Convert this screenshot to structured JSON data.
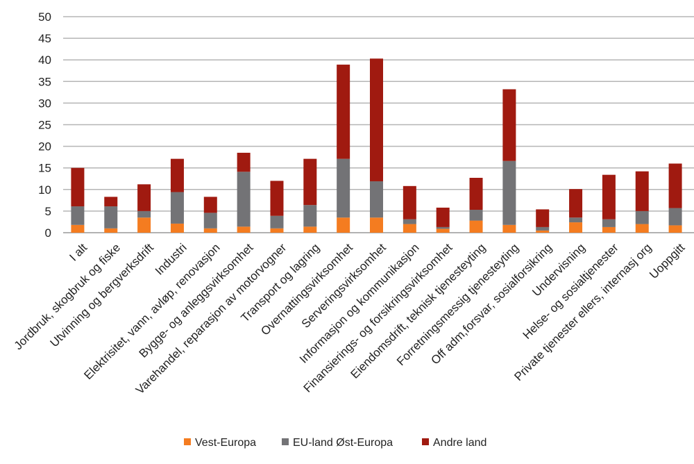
{
  "chart_data": {
    "type": "bar",
    "stacked": true,
    "title": "",
    "xlabel": "",
    "ylabel": "",
    "ylim": [
      0,
      50
    ],
    "yticks": [
      0,
      5,
      10,
      15,
      20,
      25,
      30,
      35,
      40,
      45,
      50
    ],
    "grid": true,
    "legend_position": "bottom",
    "categories": [
      "I alt",
      "Jordbruk, skogbruk og fiske",
      "Utvinning og bergverksdrift",
      "Industri",
      "Elektrisitet, vann, avløp, renovasjon",
      "Bygge- og anleggsvirksomhet",
      "Varehandel, reparasjon av motorvogner",
      "Transport og lagring",
      "Overnattingsvirksomhet",
      "Serveringsvirksomhet",
      "Informasjon og kommunikasjon",
      "Finansierings- og forsikringsvirksomhet",
      "Eiendomsdrift, teknisk tjenesteyting",
      "Forretningsmessig tjenesteyting",
      "Off adm,forsvar, sosialforsikring",
      "Undervisning",
      "Helse- og sosialtjenester",
      "Private tjenester ellers, internasj org",
      "Uoppgitt"
    ],
    "series": [
      {
        "name": "Vest-Europa",
        "color": "#f47c20",
        "values": [
          1.8,
          1.0,
          3.5,
          2.1,
          1.0,
          1.4,
          1.0,
          1.4,
          3.5,
          3.5,
          2.0,
          0.9,
          2.8,
          1.8,
          0.5,
          2.4,
          1.3,
          2.0,
          1.7
        ]
      },
      {
        "name": "EU-land Øst-Europa",
        "color": "#737376",
        "values": [
          4.3,
          5.1,
          1.5,
          7.3,
          3.6,
          12.7,
          2.9,
          5.0,
          13.6,
          8.4,
          1.1,
          0.4,
          2.5,
          14.8,
          0.8,
          1.1,
          1.8,
          3.0,
          4.0
        ]
      },
      {
        "name": "Andre land",
        "color": "#a01a10",
        "values": [
          8.9,
          2.2,
          6.2,
          7.7,
          3.7,
          4.4,
          8.1,
          10.7,
          21.8,
          28.4,
          7.7,
          4.5,
          7.4,
          16.6,
          4.1,
          6.6,
          10.3,
          9.2,
          10.3
        ]
      }
    ]
  }
}
